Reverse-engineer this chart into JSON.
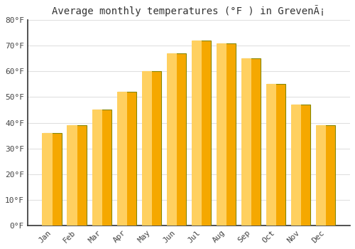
{
  "title": "Average monthly temperatures (°F ) in GrevenÃ¡",
  "months": [
    "Jan",
    "Feb",
    "Mar",
    "Apr",
    "May",
    "Jun",
    "Jul",
    "Aug",
    "Sep",
    "Oct",
    "Nov",
    "Dec"
  ],
  "values": [
    36,
    39,
    45,
    52,
    60,
    67,
    72,
    71,
    65,
    55,
    47,
    39
  ],
  "bar_color_outer": "#F5A800",
  "bar_color_inner": "#FFD060",
  "bar_edge_color": "#888800",
  "ylim": [
    0,
    80
  ],
  "yticks": [
    0,
    10,
    20,
    30,
    40,
    50,
    60,
    70,
    80
  ],
  "ytick_labels": [
    "0°F",
    "10°F",
    "20°F",
    "30°F",
    "40°F",
    "50°F",
    "60°F",
    "70°F",
    "80°F"
  ],
  "background_color": "#FFFFFF",
  "grid_color": "#E0E0E0",
  "title_fontsize": 10,
  "tick_fontsize": 8,
  "font_family": "monospace",
  "bar_width": 0.75
}
